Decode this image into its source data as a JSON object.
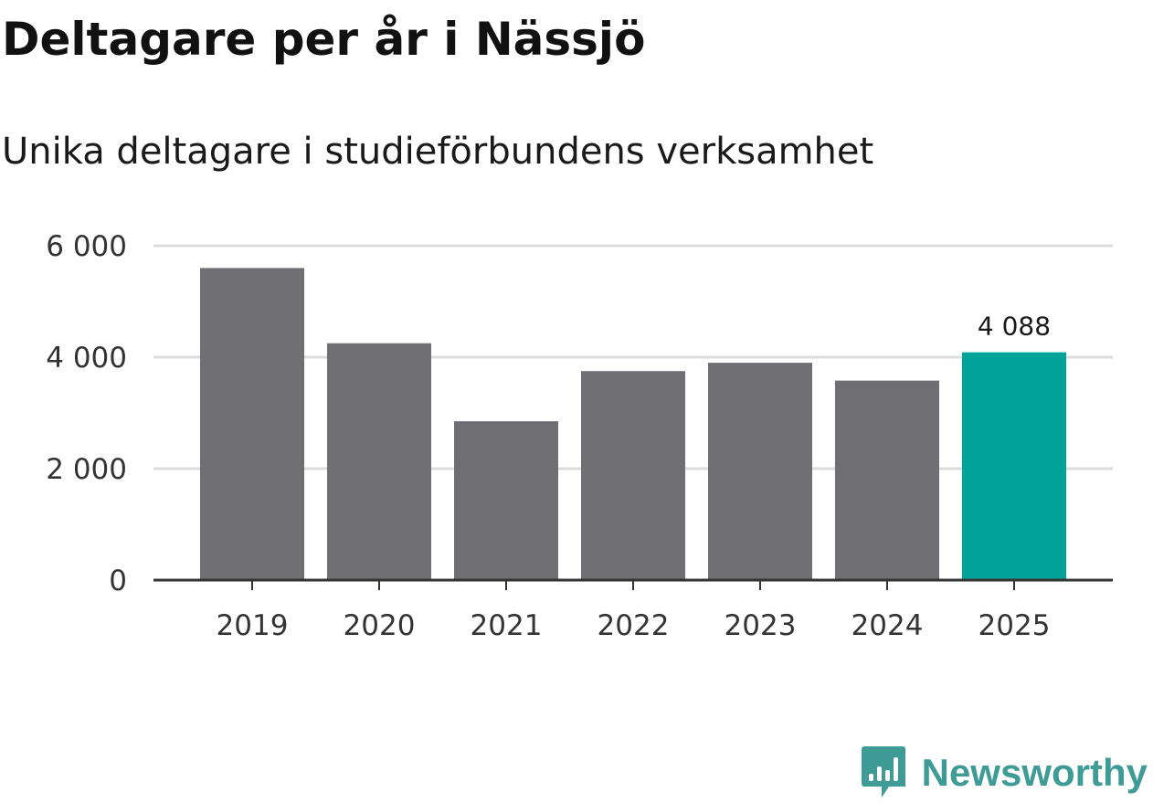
{
  "header": {
    "title": "Deltagare per år i Nässjö",
    "subtitle": "Unika deltagare i studieförbundens verksamhet"
  },
  "brand": {
    "name": "Newsworthy",
    "icon": "newsworthy-logo-icon",
    "color": "#3e9b96"
  },
  "colors": {
    "bar_default": "#6f6e73",
    "bar_highlight": "#00a39a",
    "gridline": "#dcdcdc",
    "axis": "#333333"
  },
  "chart_data": {
    "type": "bar",
    "title": "Deltagare per år i Nässjö",
    "subtitle": "Unika deltagare i studieförbundens verksamhet",
    "xlabel": "",
    "ylabel": "",
    "categories": [
      "2019",
      "2020",
      "2021",
      "2022",
      "2023",
      "2024",
      "2025"
    ],
    "values": [
      5600,
      4250,
      2850,
      3750,
      3900,
      3580,
      4088
    ],
    "highlight_index": 6,
    "data_labels": [
      {
        "index": 6,
        "text": "4 088"
      }
    ],
    "ylim": [
      0,
      6000
    ],
    "yticks": [
      0,
      2000,
      4000,
      6000
    ],
    "ytick_labels": [
      "0",
      "2 000",
      "4 000",
      "6 000"
    ],
    "grid": true,
    "legend": "none"
  }
}
